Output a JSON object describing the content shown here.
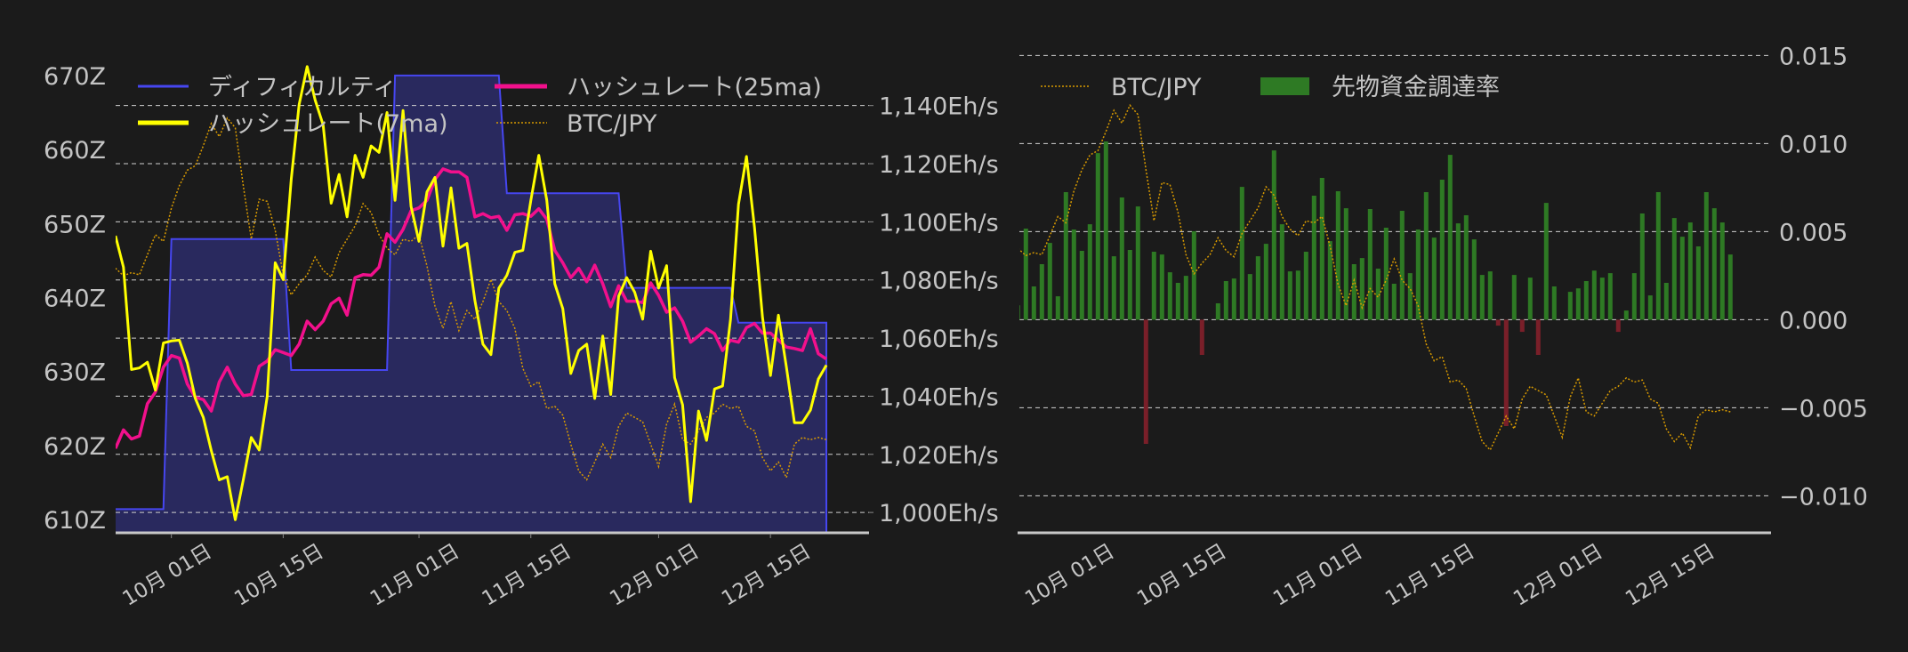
{
  "chart_data": [
    {
      "type": "line",
      "dates": [
        "09-24",
        "09-25",
        "09-26",
        "09-27",
        "09-28",
        "09-29",
        "09-30",
        "10-01",
        "10-02",
        "10-03",
        "10-04",
        "10-05",
        "10-06",
        "10-07",
        "10-08",
        "10-09",
        "10-10",
        "10-11",
        "10-12",
        "10-13",
        "10-14",
        "10-15",
        "10-16",
        "10-17",
        "10-18",
        "10-19",
        "10-20",
        "10-21",
        "10-22",
        "10-23",
        "10-24",
        "10-25",
        "10-26",
        "10-27",
        "10-28",
        "10-29",
        "10-30",
        "10-31",
        "11-01",
        "11-02",
        "11-03",
        "11-04",
        "11-05",
        "11-06",
        "11-07",
        "11-08",
        "11-09",
        "11-10",
        "11-11",
        "11-12",
        "11-13",
        "11-14",
        "11-15",
        "11-16",
        "11-17",
        "11-18",
        "11-19",
        "11-20",
        "11-21",
        "11-22",
        "11-23",
        "11-24",
        "11-25",
        "11-26",
        "11-27",
        "11-28",
        "11-29",
        "11-30",
        "12-01",
        "12-02",
        "12-03",
        "12-04",
        "12-05",
        "12-06",
        "12-07",
        "12-08",
        "12-09",
        "12-10",
        "12-11",
        "12-12",
        "12-13",
        "12-14",
        "12-15",
        "12-16",
        "12-17",
        "12-18",
        "12-19",
        "12-20",
        "12-21",
        "12-22"
      ],
      "x_ticks": [
        {
          "date": "10-01",
          "label": "10月 01日"
        },
        {
          "date": "10-15",
          "label": "10月 15日"
        },
        {
          "date": "11-01",
          "label": "11月 01日"
        },
        {
          "date": "11-15",
          "label": "11月 15日"
        },
        {
          "date": "12-01",
          "label": "12月 01日"
        },
        {
          "date": "12-15",
          "label": "12月 15日"
        }
      ],
      "left_axis": {
        "unit": "Z",
        "ylim": [
          608.2,
          677.8
        ],
        "ticks": [
          {
            "value": 670,
            "label": "670Z"
          },
          {
            "value": 660,
            "label": "660Z"
          },
          {
            "value": 650,
            "label": "650Z"
          },
          {
            "value": 640,
            "label": "640Z"
          },
          {
            "value": 630,
            "label": "630Z"
          },
          {
            "value": 620,
            "label": "620Z"
          },
          {
            "value": 610,
            "label": "610Z"
          }
        ]
      },
      "right_axis": {
        "unit": "Eh/s",
        "ylim": [
          993,
          1170.2
        ],
        "grid": true,
        "ticks": [
          {
            "value": 1140,
            "label": "1,140Eh/s"
          },
          {
            "value": 1120,
            "label": "1,120Eh/s"
          },
          {
            "value": 1100,
            "label": "1,100Eh/s"
          },
          {
            "value": 1080,
            "label": "1,080Eh/s"
          },
          {
            "value": 1060,
            "label": "1,060Eh/s"
          },
          {
            "value": 1040,
            "label": "1,040Eh/s"
          },
          {
            "value": 1020,
            "label": "1,020Eh/s"
          },
          {
            "value": 1000,
            "label": "1,000Eh/s"
          }
        ]
      },
      "hidden_axis_ylim": [
        10.1,
        125.7
      ],
      "legend": "top",
      "series": [
        {
          "name": "ディフィカルティ",
          "axis": "left",
          "style": "step-area",
          "color": "#4646f0",
          "fill": "#29295e",
          "values": [
            611.4,
            611.4,
            611.4,
            611.4,
            611.4,
            611.4,
            611.4,
            647.9,
            647.9,
            647.9,
            647.9,
            647.9,
            647.9,
            647.9,
            647.9,
            647.9,
            647.9,
            647.9,
            647.9,
            647.9,
            647.9,
            647.9,
            630.2,
            630.2,
            630.2,
            630.2,
            630.2,
            630.2,
            630.2,
            630.2,
            630.2,
            630.2,
            630.2,
            630.2,
            630.2,
            670.0,
            670.0,
            670.0,
            670.0,
            670.0,
            670.0,
            670.0,
            670.0,
            670.0,
            670.0,
            670.0,
            670.0,
            670.0,
            670.0,
            654.1,
            654.1,
            654.1,
            654.1,
            654.1,
            654.1,
            654.1,
            654.1,
            654.1,
            654.1,
            654.1,
            654.1,
            654.1,
            654.1,
            654.1,
            641.3,
            641.3,
            641.3,
            641.3,
            641.3,
            641.3,
            641.3,
            641.3,
            641.3,
            641.3,
            641.3,
            641.3,
            641.3,
            641.3,
            636.6,
            636.6,
            636.6,
            636.6,
            636.6,
            636.6,
            636.6,
            636.6,
            636.6,
            636.6,
            636.6,
            636.6
          ]
        },
        {
          "name": "ハッシュレート(25ma)",
          "axis": "right",
          "style": "line",
          "color": "#f2108c",
          "values": [
            1022,
            1028.4,
            1025.3,
            1026.3,
            1037.4,
            1041.4,
            1050,
            1054,
            1053.1,
            1044.2,
            1039.6,
            1038.8,
            1034.9,
            1044.9,
            1050,
            1044.2,
            1040.2,
            1040.6,
            1050.3,
            1052.1,
            1056,
            1055,
            1054,
            1057.9,
            1065.8,
            1062.9,
            1065.8,
            1071.8,
            1073.7,
            1067.9,
            1080.8,
            1081.8,
            1081.6,
            1084.4,
            1095.9,
            1093,
            1097.4,
            1103.8,
            1104.8,
            1107.4,
            1114.6,
            1118.2,
            1117.2,
            1117.2,
            1115.3,
            1101.7,
            1102.8,
            1101.4,
            1101.9,
            1097.1,
            1102.4,
            1102.8,
            1101.9,
            1104.5,
            1100.9,
            1090.2,
            1085.9,
            1080.8,
            1084,
            1079.4,
            1085.1,
            1078.7,
            1070.8,
            1078,
            1072.7,
            1072.7,
            1072.2,
            1079,
            1074.7,
            1068.9,
            1070.4,
            1065.8,
            1058.6,
            1060.7,
            1063.2,
            1061.5,
            1055.7,
            1059.3,
            1058.6,
            1063.6,
            1065,
            1061.7,
            1061.7,
            1059.3,
            1056.9,
            1056.4,
            1055.7,
            1063.2,
            1054.6,
            1052.8
          ]
        },
        {
          "name": "ハッシュレート(7ma)",
          "axis": "right",
          "style": "line",
          "color": "#ffff00",
          "values": [
            1095.2,
            1084.4,
            1049.2,
            1049.7,
            1051.7,
            1042.1,
            1058.3,
            1059,
            1059.3,
            1051.4,
            1039.2,
            1032.7,
            1021.2,
            1011.2,
            1012.3,
            997.5,
            1011.2,
            1025.8,
            1021.5,
            1039.9,
            1085.9,
            1080.1,
            1114.6,
            1140.4,
            1153.4,
            1141.9,
            1133.3,
            1106.4,
            1116.3,
            1101.7,
            1122.9,
            1115.3,
            1126.1,
            1123.9,
            1137.6,
            1107.4,
            1138.3,
            1105.3,
            1093.3,
            1110.3,
            1115.3,
            1091.6,
            1111.7,
            1090.9,
            1092.6,
            1072.9,
            1057.9,
            1054.3,
            1077.2,
            1081.6,
            1089.5,
            1090.2,
            1107.4,
            1122.9,
            1107.4,
            1078.7,
            1070.1,
            1047.8,
            1055.7,
            1057.9,
            1039.2,
            1060.7,
            1040.6,
            1074.4,
            1080.8,
            1075.8,
            1066.5,
            1089.9,
            1077.2,
            1084.9,
            1046.4,
            1037,
            1003.7,
            1034.9,
            1024.8,
            1042.5,
            1043.5,
            1066.5,
            1106,
            1122.5,
            1098.1,
            1067.2,
            1047.1,
            1067.9,
            1050,
            1030.9,
            1030.9,
            1035.2,
            1045.9,
            1050.7
          ]
        },
        {
          "name": "BTC/JPY",
          "axis": "hidden",
          "style": "dotted",
          "color": "#d89a00",
          "values_relative": true,
          "values": [
            69.5,
            67.8,
            68.5,
            68,
            72.5,
            77,
            75.5,
            83,
            88,
            91.5,
            92.5,
            97,
            102,
            99,
            103.2,
            101,
            88,
            76,
            85,
            84.5,
            78,
            68,
            63.5,
            66,
            68,
            72,
            69,
            67.5,
            73,
            76,
            79,
            84,
            82,
            77,
            74,
            72.5,
            76,
            75.5,
            77,
            70,
            61,
            56,
            62,
            55.5,
            60,
            58,
            62,
            67,
            62,
            60,
            56,
            47,
            43,
            44,
            38,
            38.5,
            36.5,
            30,
            24,
            22,
            26,
            30,
            27,
            34,
            37,
            36,
            35,
            30,
            25,
            34.5,
            39,
            31,
            30,
            33,
            36,
            37,
            39,
            38,
            38.5,
            34,
            33,
            27,
            24,
            26,
            22.5,
            30,
            31.5,
            31,
            31.5,
            31
          ]
        }
      ]
    },
    {
      "type": "bar",
      "x_ticks": [
        {
          "date": "10-01",
          "label": "10月 01日"
        },
        {
          "date": "10-15",
          "label": "10月 15日"
        },
        {
          "date": "11-01",
          "label": "11月 01日"
        },
        {
          "date": "11-15",
          "label": "11月 15日"
        },
        {
          "date": "12-01",
          "label": "12月 01日"
        },
        {
          "date": "12-15",
          "label": "12月 15日"
        }
      ],
      "right_axis": {
        "ylim": [
          -0.0121,
          0.01714
        ],
        "grid": true,
        "ticks": [
          {
            "value": 0.015,
            "label": "0.015"
          },
          {
            "value": 0.01,
            "label": "0.010"
          },
          {
            "value": 0.005,
            "label": "0.005"
          },
          {
            "value": 0.0,
            "label": "0.000"
          },
          {
            "value": -0.005,
            "label": "−0.005"
          },
          {
            "value": -0.01,
            "label": "−0.010"
          }
        ]
      },
      "hidden_axis_ylim": [
        2.5,
        123.8
      ],
      "legend": "top-left",
      "positive_color": "#2e7a24",
      "negative_color": "#7a1f29",
      "series": [
        {
          "name": "BTC/JPY",
          "style": "dotted",
          "color": "#d89a00",
          "same_as_left_chart": true
        },
        {
          "name": "先物資金調達率",
          "style": "bar",
          "color": "#2e7a24",
          "values": [
            0.00082,
            0.00517,
            0.00189,
            0.00315,
            0.00436,
            0.00133,
            0.00724,
            0.00512,
            0.00391,
            0.00542,
            0.00946,
            0.01012,
            0.0036,
            0.00694,
            0.00396,
            0.00643,
            -0.00705,
            0.00386,
            0.0037,
            0.00269,
            0.00209,
            0.00249,
            0.00502,
            -0.002,
            0,
            0.00093,
            0.00219,
            0.00234,
            0.00754,
            0.00259,
            0.0036,
            0.00431,
            0.00961,
            0.00542,
            0.00274,
            0.00279,
            0.00386,
            0.00704,
            0.00805,
            0.00446,
            0.00729,
            0.00633,
            0.00315,
            0.0035,
            0.00628,
            0.0029,
            0.00522,
            0.00204,
            0.00618,
            0.00264,
            0.00512,
            0.00724,
            0.00466,
            0.00795,
            0.00936,
            0.00547,
            0.00593,
            0.00456,
            0.00254,
            0.00274,
            -0.00034,
            -0.00604,
            0.00254,
            -0.00069,
            0.00239,
            -0.002,
            0.00663,
            0.00189,
            0,
            0.00158,
            0.00178,
            0.00219,
            0.00279,
            0.00239,
            0.00264,
            -0.00069,
            0.00052,
            0.00264,
            0.00603,
            0.00138,
            0.00724,
            0.00209,
            0.00577,
            0.00471,
            0.00552,
            0.00416,
            0.00724,
            0.00633,
            0.00552,
            0.0037
          ]
        }
      ]
    }
  ]
}
